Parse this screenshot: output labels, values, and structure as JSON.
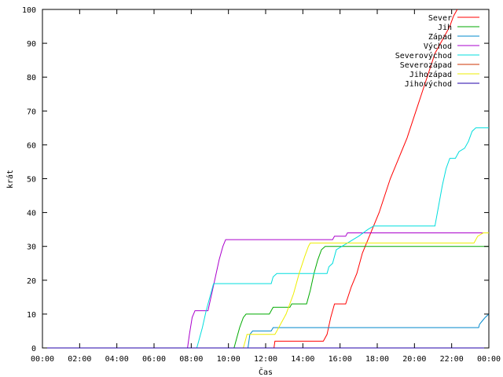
{
  "chart_data": {
    "type": "line",
    "xlabel": "Čas",
    "ylabel": "krát",
    "xlim": [
      0,
      24
    ],
    "ylim": [
      0,
      100
    ],
    "x_ticks": [
      {
        "value": 0,
        "label": "00:00"
      },
      {
        "value": 2,
        "label": "02:00"
      },
      {
        "value": 4,
        "label": "04:00"
      },
      {
        "value": 6,
        "label": "06:00"
      },
      {
        "value": 8,
        "label": "08:00"
      },
      {
        "value": 10,
        "label": "10:00"
      },
      {
        "value": 12,
        "label": "12:00"
      },
      {
        "value": 14,
        "label": "14:00"
      },
      {
        "value": 16,
        "label": "16:00"
      },
      {
        "value": 18,
        "label": "18:00"
      },
      {
        "value": 20,
        "label": "20:00"
      },
      {
        "value": 22,
        "label": "22:00"
      },
      {
        "value": 24,
        "label": "00:00"
      }
    ],
    "y_ticks": [
      0,
      10,
      20,
      30,
      40,
      50,
      60,
      70,
      80,
      90,
      100
    ],
    "grid": false,
    "legend_position": "top-right",
    "series": [
      {
        "name": "Sever",
        "color": "#ff0000",
        "points": [
          [
            0,
            0
          ],
          [
            12.45,
            0
          ],
          [
            12.5,
            2
          ],
          [
            15.1,
            2
          ],
          [
            15.3,
            4
          ],
          [
            15.5,
            9
          ],
          [
            15.7,
            13
          ],
          [
            16.3,
            13
          ],
          [
            16.6,
            18
          ],
          [
            16.9,
            22
          ],
          [
            17.2,
            28
          ],
          [
            17.5,
            32
          ],
          [
            17.8,
            36
          ],
          [
            18.1,
            40
          ],
          [
            18.4,
            45
          ],
          [
            18.7,
            50
          ],
          [
            19.0,
            54
          ],
          [
            19.3,
            58
          ],
          [
            19.6,
            62
          ],
          [
            19.9,
            67
          ],
          [
            20.2,
            72
          ],
          [
            20.5,
            77
          ],
          [
            20.8,
            82
          ],
          [
            21.1,
            87
          ],
          [
            21.4,
            90
          ],
          [
            21.7,
            93
          ],
          [
            21.9,
            95
          ],
          [
            22.1,
            98
          ],
          [
            22.3,
            100
          ]
        ]
      },
      {
        "name": "Jih",
        "color": "#00aa00",
        "points": [
          [
            0,
            0
          ],
          [
            10.3,
            0
          ],
          [
            10.45,
            3
          ],
          [
            10.6,
            6
          ],
          [
            10.8,
            9
          ],
          [
            10.95,
            10
          ],
          [
            12.2,
            10
          ],
          [
            12.4,
            12
          ],
          [
            13.3,
            12
          ],
          [
            13.4,
            13
          ],
          [
            14.2,
            13
          ],
          [
            14.4,
            17
          ],
          [
            14.6,
            22
          ],
          [
            14.8,
            26
          ],
          [
            15.0,
            29
          ],
          [
            15.2,
            30
          ],
          [
            24,
            30
          ]
        ]
      },
      {
        "name": "Západ",
        "color": "#0088cc",
        "points": [
          [
            0,
            0
          ],
          [
            11.05,
            0
          ],
          [
            11.15,
            4
          ],
          [
            11.3,
            5
          ],
          [
            12.3,
            5
          ],
          [
            12.4,
            6
          ],
          [
            23.45,
            6
          ],
          [
            23.5,
            7
          ],
          [
            23.65,
            8
          ],
          [
            23.8,
            9
          ],
          [
            24,
            10
          ]
        ]
      },
      {
        "name": "Východ",
        "color": "#aa00cc",
        "points": [
          [
            0,
            0
          ],
          [
            7.8,
            0
          ],
          [
            7.9,
            4
          ],
          [
            8.05,
            9
          ],
          [
            8.2,
            11
          ],
          [
            8.9,
            11
          ],
          [
            9.1,
            16
          ],
          [
            9.3,
            21
          ],
          [
            9.5,
            26
          ],
          [
            9.7,
            30
          ],
          [
            9.85,
            32
          ],
          [
            15.6,
            32
          ],
          [
            15.7,
            33
          ],
          [
            16.3,
            33
          ],
          [
            16.4,
            34
          ],
          [
            24,
            34
          ]
        ]
      },
      {
        "name": "Severovýchod",
        "color": "#00dddd",
        "points": [
          [
            0,
            0
          ],
          [
            8.3,
            0
          ],
          [
            8.4,
            2
          ],
          [
            8.6,
            6
          ],
          [
            8.8,
            11
          ],
          [
            9.0,
            15
          ],
          [
            9.2,
            19
          ],
          [
            12.3,
            19
          ],
          [
            12.4,
            21
          ],
          [
            12.6,
            22
          ],
          [
            15.3,
            22
          ],
          [
            15.4,
            24
          ],
          [
            15.6,
            25
          ],
          [
            15.8,
            29
          ],
          [
            16.1,
            30
          ],
          [
            16.4,
            31
          ],
          [
            16.7,
            32
          ],
          [
            17.0,
            33
          ],
          [
            17.5,
            35
          ],
          [
            17.8,
            36
          ],
          [
            21.1,
            36
          ],
          [
            21.3,
            42
          ],
          [
            21.5,
            48
          ],
          [
            21.7,
            53
          ],
          [
            21.9,
            56
          ],
          [
            22.2,
            56
          ],
          [
            22.4,
            58
          ],
          [
            22.7,
            59
          ],
          [
            22.9,
            61
          ],
          [
            23.1,
            64
          ],
          [
            23.3,
            65
          ],
          [
            24,
            65
          ]
        ]
      },
      {
        "name": "Severozápad",
        "color": "#cc3300",
        "points": [
          [
            0,
            0
          ],
          [
            24,
            0
          ]
        ]
      },
      {
        "name": "Jihozápad",
        "color": "#eeee00",
        "points": [
          [
            0,
            0
          ],
          [
            10.8,
            0
          ],
          [
            10.9,
            2
          ],
          [
            11.0,
            4
          ],
          [
            12.5,
            4
          ],
          [
            12.7,
            6
          ],
          [
            13.1,
            10
          ],
          [
            13.5,
            16
          ],
          [
            13.8,
            22
          ],
          [
            14.1,
            27
          ],
          [
            14.3,
            30
          ],
          [
            14.4,
            31
          ],
          [
            23.2,
            31
          ],
          [
            23.4,
            33
          ],
          [
            23.7,
            34
          ],
          [
            24,
            34
          ]
        ]
      },
      {
        "name": "Jihovýchod",
        "color": "#2200aa",
        "points": [
          [
            0,
            0
          ],
          [
            24,
            0
          ]
        ]
      }
    ]
  }
}
